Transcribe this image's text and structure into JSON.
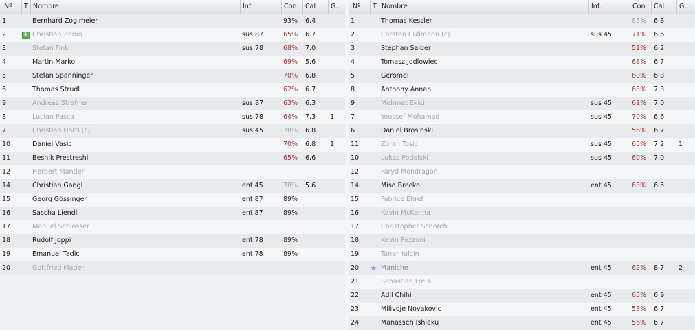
{
  "headers": {
    "num": "Nº",
    "t": "T",
    "name": "Nombre",
    "inf": "Inf.",
    "con": "Con",
    "cal": "Cal",
    "goals": "G.."
  },
  "left_players": [
    {
      "num": "1",
      "icon": "",
      "name": "Bernhard Zoglmeier",
      "inf": "",
      "con": "93%",
      "cal": "6.4",
      "g": "",
      "dim": false,
      "con_style": "none"
    },
    {
      "num": "2",
      "icon": "plus",
      "name": "Christian Zorko",
      "inf": "sus 87",
      "con": "65%",
      "cal": "6.7",
      "g": "",
      "dim": true,
      "con_style": "pct"
    },
    {
      "num": "3",
      "icon": "",
      "name": "Stefan Fink",
      "inf": "sus 78",
      "con": "68%",
      "cal": "7.0",
      "g": "",
      "dim": true,
      "con_style": "pct"
    },
    {
      "num": "4",
      "icon": "",
      "name": "Martin Marko",
      "inf": "",
      "con": "69%",
      "cal": "5.6",
      "g": "",
      "dim": false,
      "con_style": "pct"
    },
    {
      "num": "5",
      "icon": "",
      "name": "Stefan Spanninger",
      "inf": "",
      "con": "70%",
      "cal": "6.8",
      "g": "",
      "dim": false,
      "con_style": "pct"
    },
    {
      "num": "6",
      "icon": "",
      "name": "Thomas Strudl",
      "inf": "",
      "con": "62%",
      "cal": "6.7",
      "g": "",
      "dim": false,
      "con_style": "pct"
    },
    {
      "num": "9",
      "icon": "",
      "name": "Andreas Strafner",
      "inf": "sus 87",
      "con": "63%",
      "cal": "6.3",
      "g": "",
      "dim": true,
      "con_style": "pct"
    },
    {
      "num": "8",
      "icon": "",
      "name": "Lucian Pasca",
      "inf": "sus 78",
      "con": "64%",
      "cal": "7.3",
      "g": "1",
      "dim": true,
      "con_style": "pct"
    },
    {
      "num": "7",
      "icon": "",
      "name": "Christian Hartl (c)",
      "inf": "sus 45",
      "con": "78%",
      "cal": "6.8",
      "g": "",
      "dim": true,
      "con_style": "dim"
    },
    {
      "num": "10",
      "icon": "",
      "name": "Daniel Vasic",
      "inf": "",
      "con": "70%",
      "cal": "6.8",
      "g": "1",
      "dim": false,
      "con_style": "pct"
    },
    {
      "num": "11",
      "icon": "",
      "name": "Besnik Prestreshi",
      "inf": "",
      "con": "65%",
      "cal": "6.6",
      "g": "",
      "dim": false,
      "con_style": "pct"
    },
    {
      "num": "12",
      "icon": "",
      "name": "Herbert Mantler",
      "inf": "",
      "con": "",
      "cal": "",
      "g": "",
      "dim": true,
      "con_style": "none"
    },
    {
      "num": "14",
      "icon": "",
      "name": "Christian Gangl",
      "inf": "ent 45",
      "con": "78%",
      "cal": "5.6",
      "g": "",
      "dim": false,
      "con_style": "dim"
    },
    {
      "num": "15",
      "icon": "",
      "name": "Georg Gössinger",
      "inf": "ent 87",
      "con": "89%",
      "cal": "",
      "g": "",
      "dim": false,
      "con_style": "none"
    },
    {
      "num": "16",
      "icon": "",
      "name": "Sascha Liendl",
      "inf": "ent 87",
      "con": "89%",
      "cal": "",
      "g": "",
      "dim": false,
      "con_style": "none"
    },
    {
      "num": "17",
      "icon": "",
      "name": "Manuel Schlosser",
      "inf": "",
      "con": "",
      "cal": "",
      "g": "",
      "dim": true,
      "con_style": "none"
    },
    {
      "num": "18",
      "icon": "",
      "name": "Rudolf Joppi",
      "inf": "ent 78",
      "con": "89%",
      "cal": "",
      "g": "",
      "dim": false,
      "con_style": "none"
    },
    {
      "num": "19",
      "icon": "",
      "name": "Emanuel Tadic",
      "inf": "ent 78",
      "con": "89%",
      "cal": "",
      "g": "",
      "dim": false,
      "con_style": "none"
    },
    {
      "num": "20",
      "icon": "",
      "name": "Gottfried Mader",
      "inf": "",
      "con": "",
      "cal": "",
      "g": "",
      "dim": true,
      "con_style": "none"
    }
  ],
  "right_players": [
    {
      "num": "1",
      "icon": "",
      "name": "Thomas Kessler",
      "inf": "",
      "con": "85%",
      "cal": "6.8",
      "g": "",
      "dim": false,
      "con_style": "dim"
    },
    {
      "num": "2",
      "icon": "",
      "name": "Carsten Cullmann (c)",
      "inf": "sus 45",
      "con": "71%",
      "cal": "6.6",
      "g": "",
      "dim": true,
      "con_style": "pct"
    },
    {
      "num": "3",
      "icon": "",
      "name": "Stephan Salger",
      "inf": "",
      "con": "51%",
      "cal": "6.2",
      "g": "",
      "dim": false,
      "con_style": "low"
    },
    {
      "num": "4",
      "icon": "",
      "name": "Tomasz Jodlowiec",
      "inf": "",
      "con": "68%",
      "cal": "6.7",
      "g": "",
      "dim": false,
      "con_style": "pct"
    },
    {
      "num": "5",
      "icon": "",
      "name": "Geromel",
      "inf": "",
      "con": "60%",
      "cal": "6.8",
      "g": "",
      "dim": false,
      "con_style": "pct"
    },
    {
      "num": "8",
      "icon": "",
      "name": "Anthony Annan",
      "inf": "",
      "con": "63%",
      "cal": "7.3",
      "g": "",
      "dim": false,
      "con_style": "pct"
    },
    {
      "num": "9",
      "icon": "",
      "name": "Mehmet Ekici",
      "inf": "sus 45",
      "con": "61%",
      "cal": "7.0",
      "g": "",
      "dim": true,
      "con_style": "pct"
    },
    {
      "num": "7",
      "icon": "",
      "name": "Youssef Mohamad",
      "inf": "sus 45",
      "con": "70%",
      "cal": "6.6",
      "g": "",
      "dim": true,
      "con_style": "pct"
    },
    {
      "num": "6",
      "icon": "",
      "name": "Daniel Brosinski",
      "inf": "",
      "con": "56%",
      "cal": "6.7",
      "g": "",
      "dim": false,
      "con_style": "pct"
    },
    {
      "num": "11",
      "icon": "",
      "name": "Zoran Tosic",
      "inf": "sus 45",
      "con": "65%",
      "cal": "7.2",
      "g": "1",
      "dim": true,
      "con_style": "pct"
    },
    {
      "num": "10",
      "icon": "",
      "name": "Lukas Podolski",
      "inf": "sus 45",
      "con": "60%",
      "cal": "7.0",
      "g": "",
      "dim": true,
      "con_style": "pct"
    },
    {
      "num": "12",
      "icon": "",
      "name": "Faryd Mondragón",
      "inf": "",
      "con": "",
      "cal": "",
      "g": "",
      "dim": true,
      "con_style": "none"
    },
    {
      "num": "14",
      "icon": "",
      "name": "Miso Brecko",
      "inf": "ent 45",
      "con": "63%",
      "cal": "6.5",
      "g": "",
      "dim": false,
      "con_style": "pct"
    },
    {
      "num": "15",
      "icon": "",
      "name": "Fabrice Ehret",
      "inf": "",
      "con": "",
      "cal": "",
      "g": "",
      "dim": true,
      "con_style": "none"
    },
    {
      "num": "16",
      "icon": "",
      "name": "Kevin McKenna",
      "inf": "",
      "con": "",
      "cal": "",
      "g": "",
      "dim": true,
      "con_style": "none"
    },
    {
      "num": "17",
      "icon": "",
      "name": "Christopher Schorch",
      "inf": "",
      "con": "",
      "cal": "",
      "g": "",
      "dim": true,
      "con_style": "none"
    },
    {
      "num": "18",
      "icon": "",
      "name": "Kevin Pezzoni",
      "inf": "",
      "con": "",
      "cal": "",
      "g": "",
      "dim": true,
      "con_style": "none"
    },
    {
      "num": "19",
      "icon": "",
      "name": "Taner Yalçin",
      "inf": "",
      "con": "",
      "cal": "",
      "g": "",
      "dim": true,
      "con_style": "none"
    },
    {
      "num": "20",
      "icon": "star",
      "name": "Maniche",
      "inf": "ent 45",
      "con": "62%",
      "cal": "8.7",
      "g": "2",
      "dim": false,
      "hl": true,
      "con_style": "pct"
    },
    {
      "num": "21",
      "icon": "",
      "name": "Sebastian Freis",
      "inf": "",
      "con": "",
      "cal": "",
      "g": "",
      "dim": true,
      "con_style": "none"
    },
    {
      "num": "22",
      "icon": "",
      "name": "Adil Chihi",
      "inf": "ent 45",
      "con": "65%",
      "cal": "6.9",
      "g": "",
      "dim": false,
      "con_style": "pct"
    },
    {
      "num": "23",
      "icon": "",
      "name": "Milivoje Novakovic",
      "inf": "ent 45",
      "con": "58%",
      "cal": "6.7",
      "g": "",
      "dim": false,
      "con_style": "pct"
    },
    {
      "num": "24",
      "icon": "",
      "name": "Manasseh Ishiaku",
      "inf": "ent 45",
      "con": "56%",
      "cal": "6.7",
      "g": "",
      "dim": false,
      "con_style": "pct"
    }
  ],
  "colors": {
    "con_pct": "#8c3b3b",
    "con_low": "#bb2a2a",
    "dim_text": "#a2a6ab",
    "highlight": "#6f8fb8"
  },
  "icons": {
    "plus": "plus-icon",
    "star": "star-icon"
  }
}
